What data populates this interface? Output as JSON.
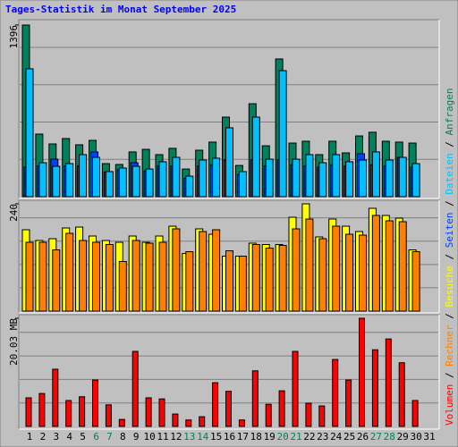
{
  "chart_data": {
    "type": "bar",
    "title": "Tages-Statistik im Monat September 2025",
    "categories": [
      "1",
      "2",
      "3",
      "4",
      "5",
      "6",
      "7",
      "8",
      "9",
      "10",
      "11",
      "12",
      "13",
      "14",
      "15",
      "16",
      "17",
      "18",
      "19",
      "20",
      "21",
      "22",
      "23",
      "24",
      "25",
      "26",
      "27",
      "28",
      "29",
      "30",
      "31"
    ],
    "category_colors": [
      "#000000",
      "#000000",
      "#000000",
      "#000000",
      "#000000",
      "#00805c",
      "#00805c",
      "#000000",
      "#000000",
      "#000000",
      "#000000",
      "#000000",
      "#00805c",
      "#00805c",
      "#000000",
      "#000000",
      "#000000",
      "#000000",
      "#000000",
      "#00805c",
      "#00805c",
      "#000000",
      "#000000",
      "#000000",
      "#000000",
      "#000000",
      "#00805c",
      "#00805c",
      "#000000",
      "#000000",
      "#000000"
    ],
    "panels": [
      {
        "ylim": [
          0,
          1396
        ],
        "yticks": [
          1396
        ],
        "series": [
          {
            "name": "Anfragen",
            "color": "#00805c",
            "values": [
              1396,
              509,
              429,
              473,
              422,
              458,
              269,
              262,
              364,
              385,
              342,
              393,
              225,
              378,
              444,
              647,
              254,
              756,
              414,
              1120,
              436,
              451,
              342,
              451,
              356,
              494,
              524,
              451,
              444,
              436,
              null
            ]
          },
          {
            "name": "Seiten",
            "color": "#0040ff",
            "values": [
              240,
              250,
              305,
              250,
              250,
              364,
              200,
              220,
              276,
              210,
              250,
              250,
              150,
              250,
              260,
              300,
              180,
              300,
              250,
              300,
              260,
              250,
              240,
              260,
              250,
              349,
              260,
              250,
              320,
              240,
              null
            ]
          },
          {
            "name": "Dateien",
            "color": "#00c0ff",
            "values": [
              1040,
              276,
              247,
              269,
              342,
              320,
              204,
              233,
              247,
              225,
              284,
              320,
              167,
              298,
              313,
              560,
              204,
              647,
              305,
              1025,
              305,
              342,
              276,
              342,
              284,
              298,
              364,
              298,
              320,
              269,
              null
            ]
          }
        ]
      },
      {
        "ylim": [
          0,
          240
        ],
        "yticks": [
          240
        ],
        "series": [
          {
            "name": "Besuche",
            "color": "#ffff00",
            "values": [
              182,
              158,
              162,
              186,
              188,
              168,
              158,
              154,
              168,
              154,
              168,
              190,
              129,
              184,
              172,
              123,
              123,
              152,
              149,
              149,
              210,
              240,
              166,
              206,
              190,
              178,
              230,
              214,
              208,
              137,
              null
            ]
          },
          {
            "name": "Rechner",
            "color": "#ff8000",
            "values": [
              154,
              154,
              137,
              174,
              158,
              154,
              149,
              111,
              158,
              152,
              154,
              184,
              133,
              178,
              182,
              135,
              123,
              149,
              141,
              147,
              184,
              206,
              162,
              190,
              172,
              170,
              214,
              202,
              200,
              133,
              null
            ]
          }
        ]
      },
      {
        "ylim": [
          0,
          20.03
        ],
        "yticks": [
          {
            "value": 20.03,
            "label": "20.03 MB"
          }
        ],
        "series": [
          {
            "name": "Volumen",
            "color": "#ff0000",
            "values": [
              5.3,
              6.1,
              10.6,
              4.8,
              5.5,
              8.6,
              4.0,
              1.3,
              13.9,
              5.3,
              5.1,
              2.3,
              1.2,
              1.8,
              8.1,
              6.5,
              1.2,
              10.3,
              4.1,
              6.6,
              13.9,
              4.3,
              3.8,
              12.4,
              8.6,
              20.03,
              14.2,
              16.2,
              11.8,
              4.8,
              null
            ]
          }
        ]
      }
    ]
  }
}
